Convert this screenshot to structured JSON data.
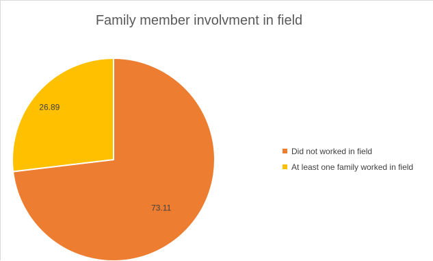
{
  "chart_data": {
    "type": "pie",
    "title": "Family member involvment in field",
    "slices": [
      {
        "label": "Did not worked in field",
        "value": 73.11,
        "color": "#ED7D31",
        "data_label": "73.11"
      },
      {
        "label": "At least one family worked in field",
        "value": 26.89,
        "color": "#FFC000",
        "data_label": "26.89"
      }
    ],
    "legend_position": "right"
  }
}
